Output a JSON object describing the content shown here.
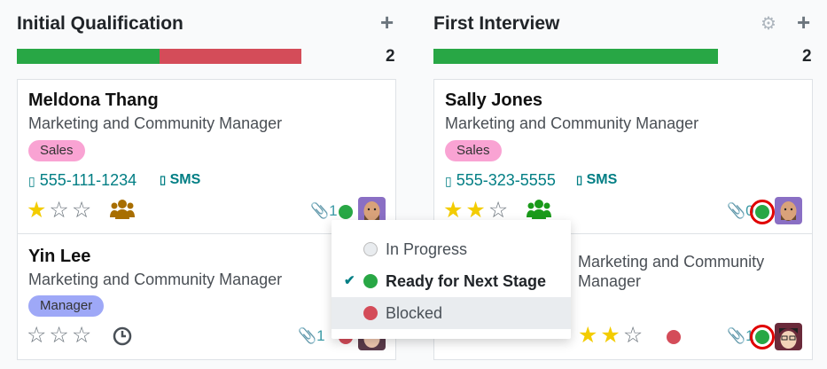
{
  "colors": {
    "ready": "#28a745",
    "blocked": "#d44c59",
    "in_progress": "#e9ecef",
    "accent": "#017e84",
    "star": "#f3cc00"
  },
  "columns": [
    {
      "title": "Initial Qualification",
      "count": "2",
      "progress": {
        "ready": 0.5,
        "blocked": 0.5
      },
      "icons": [
        "plus-icon"
      ],
      "cards": [
        {
          "name": "Meldona Thang",
          "job": "Marketing and Community Manager",
          "tag": "Sales",
          "phone": "555-111-1234",
          "sms": "SMS",
          "stars": 1,
          "activity": "group-icon",
          "attachments": "1",
          "status": "ready"
        },
        {
          "name": "Yin Lee",
          "job": "Marketing and Community Manager",
          "tag": "Manager",
          "stars": 0,
          "activity": "clock-icon",
          "attachments": "1",
          "status": "blocked"
        }
      ]
    },
    {
      "title": "First Interview",
      "count": "2",
      "progress": {
        "ready": 1.0,
        "blocked": 0
      },
      "icons": [
        "gear-icon",
        "plus-icon"
      ],
      "cards": [
        {
          "name": "Sally Jones",
          "job": "Marketing and Community Manager",
          "tag": "Sales",
          "phone": "555-323-5555",
          "sms": "SMS",
          "stars": 2,
          "activity": "group-icon",
          "attachments": "0",
          "status": "ready"
        },
        {
          "job": "Marketing and Community Manager",
          "stars": 2,
          "attachments": "1",
          "status": "ready"
        }
      ]
    }
  ],
  "status_menu": {
    "items": [
      {
        "label": "In Progress",
        "status": "in_progress",
        "selected": false
      },
      {
        "label": "Ready for Next Stage",
        "status": "ready",
        "selected": true
      },
      {
        "label": "Blocked",
        "status": "blocked",
        "selected": false,
        "hovered": true
      }
    ]
  }
}
